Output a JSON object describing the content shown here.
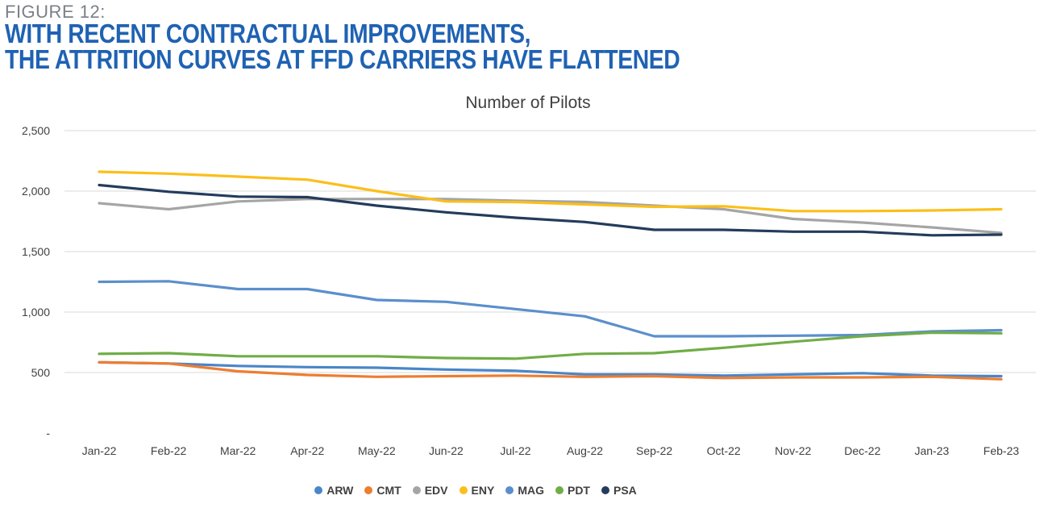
{
  "figure_label": "FIGURE 12:",
  "headline": [
    "WITH RECENT CONTRACTUAL IMPROVEMENTS,",
    "THE ATTRITION CURVES AT FFD CARRIERS HAVE FLATTENED"
  ],
  "chart_data": {
    "type": "line",
    "title": "Number of Pilots",
    "xlabel": "",
    "ylabel": "",
    "categories": [
      "Jan-22",
      "Feb-22",
      "Mar-22",
      "Apr-22",
      "May-22",
      "Jun-22",
      "Jul-22",
      "Aug-22",
      "Sep-22",
      "Oct-22",
      "Nov-22",
      "Dec-22",
      "Jan-23",
      "Feb-23"
    ],
    "ylim": [
      0,
      2500
    ],
    "yticks": [
      0,
      500,
      1000,
      1500,
      2000,
      2500
    ],
    "ytick_labels": [
      "-",
      "500",
      "1,000",
      "1,500",
      "2,000",
      "2,500"
    ],
    "grid": true,
    "legend_position": "bottom",
    "series": [
      {
        "name": "ARW",
        "color": "#4a86c8",
        "values": [
          585,
          575,
          555,
          545,
          540,
          525,
          515,
          485,
          485,
          475,
          485,
          495,
          475,
          470
        ]
      },
      {
        "name": "CMT",
        "color": "#ed7d31",
        "values": [
          585,
          575,
          510,
          480,
          465,
          470,
          475,
          465,
          470,
          455,
          460,
          460,
          465,
          445
        ]
      },
      {
        "name": "EDV",
        "color": "#a5a5a5",
        "values": [
          1900,
          1850,
          1915,
          1935,
          1935,
          1935,
          1920,
          1910,
          1880,
          1850,
          1770,
          1740,
          1700,
          1655
        ]
      },
      {
        "name": "ENY",
        "color": "#fbbf1a",
        "values": [
          2160,
          2145,
          2120,
          2095,
          2000,
          1915,
          1910,
          1890,
          1870,
          1875,
          1835,
          1835,
          1840,
          1850
        ]
      },
      {
        "name": "MAG",
        "color": "#5b8fcc",
        "values": [
          1250,
          1255,
          1190,
          1190,
          1100,
          1085,
          1025,
          965,
          800,
          800,
          805,
          810,
          840,
          850
        ]
      },
      {
        "name": "PDT",
        "color": "#70ad47",
        "values": [
          655,
          660,
          635,
          635,
          635,
          620,
          615,
          655,
          660,
          705,
          755,
          800,
          830,
          825
        ]
      },
      {
        "name": "PSA",
        "color": "#243b5c",
        "values": [
          2050,
          1995,
          1955,
          1950,
          1880,
          1825,
          1780,
          1745,
          1680,
          1680,
          1665,
          1665,
          1635,
          1640
        ]
      }
    ]
  }
}
